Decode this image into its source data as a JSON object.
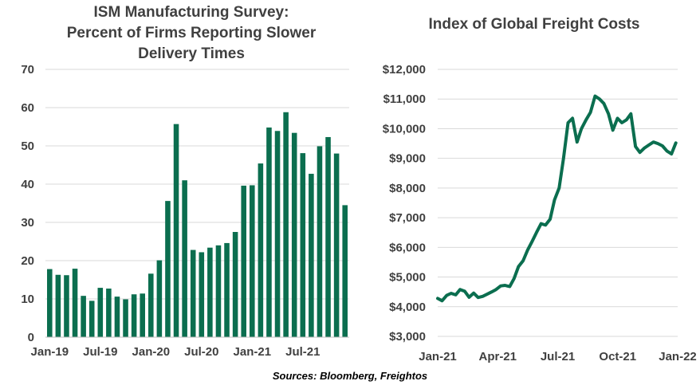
{
  "source": "Sources: Bloomberg, Freightos",
  "colors": {
    "series": "#0b6e4f",
    "grid": "#d9d9d9",
    "text": "#404040"
  },
  "chart_data": [
    {
      "type": "bar",
      "title_lines": [
        "ISM Manufacturing Survey:",
        "Percent of Firms Reporting Slower",
        "Delivery Times"
      ],
      "title": "ISM Manufacturing Survey: Percent of Firms Reporting Slower Delivery Times",
      "xlabel": "",
      "ylabel": "",
      "ylim": [
        0,
        70
      ],
      "yticks": [
        0,
        10,
        20,
        30,
        40,
        50,
        60,
        70
      ],
      "ytick_labels": [
        "0",
        "10",
        "20",
        "30",
        "40",
        "50",
        "60",
        "70"
      ],
      "x_tick_labels": [
        "Jan-19",
        "Jul-19",
        "Jan-20",
        "Jul-20",
        "Jan-21",
        "Jul-21"
      ],
      "x_tick_indices": [
        0,
        6,
        12,
        18,
        24,
        30
      ],
      "categories": [
        "Jan-19",
        "Feb-19",
        "Mar-19",
        "Apr-19",
        "May-19",
        "Jun-19",
        "Jul-19",
        "Aug-19",
        "Sep-19",
        "Oct-19",
        "Nov-19",
        "Dec-19",
        "Jan-20",
        "Feb-20",
        "Mar-20",
        "Apr-20",
        "May-20",
        "Jun-20",
        "Jul-20",
        "Aug-20",
        "Sep-20",
        "Oct-20",
        "Nov-20",
        "Dec-20",
        "Jan-21",
        "Feb-21",
        "Mar-21",
        "Apr-21",
        "May-21",
        "Jun-21",
        "Jul-21",
        "Aug-21",
        "Sep-21",
        "Oct-21",
        "Nov-21",
        "Dec-21"
      ],
      "values": [
        17.8,
        16.3,
        16.2,
        17.9,
        10.8,
        9.5,
        12.9,
        12.7,
        10.6,
        9.9,
        11.2,
        11.4,
        16.6,
        20.1,
        35.6,
        55.7,
        41.0,
        22.8,
        22.2,
        23.4,
        24.0,
        24.6,
        27.5,
        39.6,
        39.7,
        45.4,
        54.8,
        53.9,
        58.8,
        53.4,
        48.1,
        42.7,
        49.9,
        52.3,
        48.0,
        34.5
      ],
      "grid": true
    },
    {
      "type": "line",
      "title": "Index of Global Freight Costs",
      "xlabel": "",
      "ylabel": "",
      "ylim": [
        3000,
        12000
      ],
      "yticks": [
        3000,
        4000,
        5000,
        6000,
        7000,
        8000,
        9000,
        10000,
        11000,
        12000
      ],
      "ytick_labels": [
        "$3,000",
        "$4,000",
        "$5,000",
        "$6,000",
        "$7,000",
        "$8,000",
        "$9,000",
        "$10,000",
        "$11,000",
        "$12,000"
      ],
      "xlim": [
        0,
        12
      ],
      "x_tick_labels": [
        "Jan-21",
        "Apr-21",
        "Jul-21",
        "Oct-21",
        "Jan-22"
      ],
      "x_tick_positions": [
        0,
        3,
        6,
        9,
        12
      ],
      "x": [
        0.0,
        0.22,
        0.45,
        0.67,
        0.9,
        1.12,
        1.35,
        1.57,
        1.8,
        2.02,
        2.25,
        2.47,
        2.7,
        2.92,
        3.15,
        3.37,
        3.6,
        3.82,
        4.04,
        4.27,
        4.49,
        4.72,
        4.94,
        5.17,
        5.39,
        5.62,
        5.84,
        6.07,
        6.29,
        6.52,
        6.74,
        6.97,
        7.19,
        7.42,
        7.64,
        7.87,
        8.09,
        8.31,
        8.54,
        8.76,
        8.99,
        9.21,
        9.44,
        9.66,
        9.89,
        10.11,
        10.34,
        10.56,
        10.79,
        11.01,
        11.24,
        11.46,
        11.69,
        11.91
      ],
      "values": [
        4280,
        4200,
        4380,
        4450,
        4400,
        4580,
        4520,
        4320,
        4460,
        4310,
        4350,
        4420,
        4500,
        4580,
        4700,
        4720,
        4680,
        4950,
        5350,
        5550,
        5900,
        6200,
        6500,
        6800,
        6750,
        6950,
        7600,
        8000,
        9000,
        10200,
        10350,
        9550,
        10000,
        10300,
        10550,
        11100,
        11000,
        10850,
        10500,
        9950,
        10350,
        10200,
        10300,
        10500,
        9400,
        9200,
        9350,
        9450,
        9550,
        9500,
        9420,
        9250,
        9150,
        9520
      ],
      "series_name": "Global Freight Costs",
      "grid": true
    }
  ]
}
